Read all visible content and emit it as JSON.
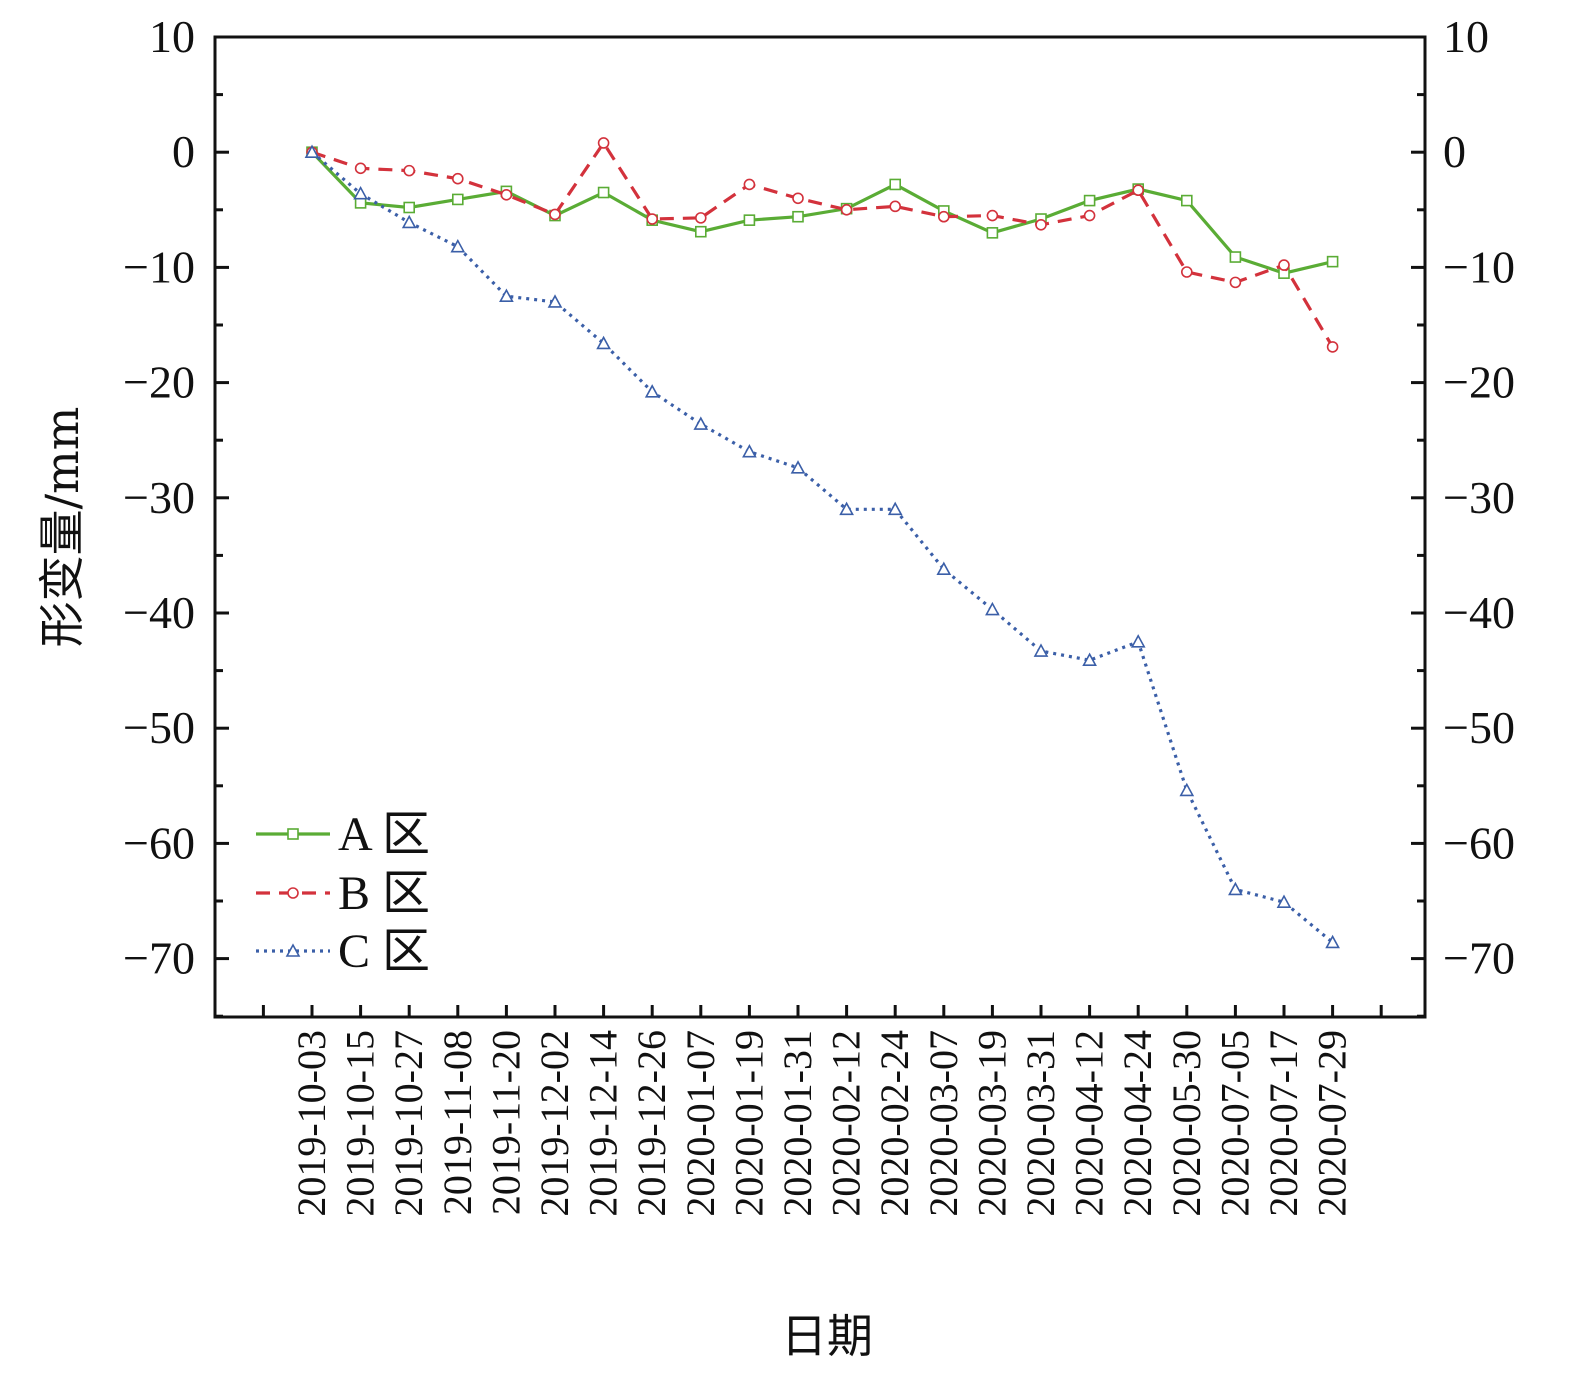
{
  "chart_data": {
    "type": "line",
    "xlabel": "日期",
    "ylabel": "形变量/mm",
    "ylim": [
      -75,
      10
    ],
    "yticks": [
      10,
      0,
      -10,
      -20,
      -30,
      -40,
      -50,
      -60,
      -70
    ],
    "ytick_labels": [
      "10",
      "0",
      "−10",
      "−20",
      "−30",
      "−40",
      "−50",
      "−60",
      "−70"
    ],
    "categories": [
      "2019-10-03",
      "2019-10-15",
      "2019-10-27",
      "2019-11-08",
      "2019-11-20",
      "2019-12-02",
      "2019-12-14",
      "2019-12-26",
      "2020-01-07",
      "2020-01-19",
      "2020-01-31",
      "2020-02-12",
      "2020-02-24",
      "2020-03-07",
      "2020-03-19",
      "2020-03-31",
      "2020-04-12",
      "2020-04-24",
      "2020-05-30",
      "2020-07-05",
      "2020-07-17",
      "2020-07-29"
    ],
    "series": [
      {
        "name": "A 区",
        "color": "#5aac35",
        "dash": "solid",
        "marker": "square",
        "values": [
          0.0,
          -4.4,
          -4.8,
          -4.1,
          -3.4,
          -5.5,
          -3.5,
          -5.9,
          -6.9,
          -5.9,
          -5.6,
          -4.9,
          -2.8,
          -5.1,
          -7.0,
          -5.8,
          -4.2,
          -3.2,
          -4.2,
          -9.1,
          -10.5,
          -9.5
        ]
      },
      {
        "name": "B 区",
        "color": "#d3323c",
        "dash": "dashed",
        "marker": "circle",
        "values": [
          0.0,
          -1.4,
          -1.6,
          -2.3,
          -3.7,
          -5.4,
          0.8,
          -5.8,
          -5.7,
          -2.8,
          -4.0,
          -5.0,
          -4.7,
          -5.6,
          -5.5,
          -6.3,
          -5.5,
          -3.3,
          -10.4,
          -11.3,
          -9.8,
          -16.9
        ]
      },
      {
        "name": "C 区",
        "color": "#3b5fa8",
        "dash": "dotted",
        "marker": "triangle",
        "values": [
          0.0,
          -3.6,
          -6.1,
          -8.2,
          -12.5,
          -13.0,
          -16.6,
          -20.8,
          -23.6,
          -26.0,
          -27.4,
          -31.0,
          -31.0,
          -36.2,
          -39.7,
          -43.3,
          -44.1,
          -42.5,
          -55.4,
          -64.0,
          -65.1,
          -68.6
        ]
      }
    ],
    "legend_position": "lower-left",
    "grid": false
  }
}
